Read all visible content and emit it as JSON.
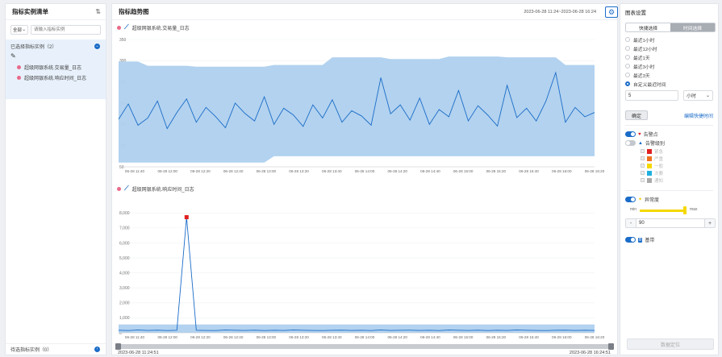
{
  "left_panel": {
    "title": "指标实例清单",
    "scope_select": "全部",
    "search_placeholder": "请输入指标实例",
    "selected_label": "已选择指标实例（2）",
    "selected_items": [
      "超级网银系统.交易量_日志",
      "超级网银系统.响应时间_日志"
    ],
    "pending_label": "待选指标实例（0）"
  },
  "main_panel": {
    "title": "指标趋势图",
    "time_range": "2023-06-28 11:24~2023-06-28 16:24",
    "slider_start": "2023-06-28 11:24:51",
    "slider_end": "2023-06-28 16:24:51"
  },
  "right_panel": {
    "title": "图表设置",
    "tab_quick": "快捷选择",
    "tab_time": "时间选择",
    "options": [
      "最近1小时",
      "最近12小时",
      "最近1天",
      "最近3小时",
      "最近3天",
      "自定义最近时间"
    ],
    "selected_option": 5,
    "custom_value": "5",
    "custom_unit": "小时",
    "confirm": "确定",
    "edit_shortcut": "编辑快捷时间",
    "alarm_point": "告警点",
    "alarm_level": "告警级别",
    "levels": [
      {
        "label": "紧急",
        "color": "#e02020"
      },
      {
        "label": "严重",
        "color": "#f07020"
      },
      {
        "label": "一般",
        "color": "#f5d800"
      },
      {
        "label": "次要",
        "color": "#1fb0e0"
      },
      {
        "label": "通知",
        "color": "#aaaaaa"
      }
    ],
    "anomaly": "异常度",
    "range_min": "min",
    "range_max": "max",
    "stepper_minus": "-",
    "stepper_value": "90",
    "stepper_plus": "+",
    "baseline": "基带",
    "locate_button": "数据定位"
  },
  "chart_data": [
    {
      "type": "line",
      "series_name": "超级网银系统.交易量_日志",
      "x_ticks": [
        "06-28 11:40",
        "06-28 12:00",
        "06-28 12:20",
        "06-28 12:40",
        "06-28 13:00",
        "06-28 13:20",
        "06-28 13:40",
        "06-28 14:00",
        "06-28 14:20",
        "06-28 14:40",
        "06-28 15:00",
        "06-28 15:20",
        "06-28 15:40",
        "06-28 16:00",
        "06-28 16:20"
      ],
      "y_ticks": [
        "50",
        "100",
        "150",
        "200",
        "250",
        "300",
        "350"
      ],
      "ylim": [
        50,
        350
      ],
      "line_color": "#1b6cc8",
      "band_color": "#aed0ee",
      "band_upper": [
        298,
        298,
        298,
        288,
        288,
        288,
        288,
        288,
        286,
        286,
        286,
        286,
        286,
        286,
        286,
        286,
        290,
        290,
        290,
        290,
        290,
        290,
        308,
        308,
        308,
        308,
        308,
        308,
        304,
        304,
        304,
        304,
        304,
        304,
        310,
        310,
        310,
        310,
        310,
        310,
        308,
        308,
        308,
        308,
        308,
        308,
        290,
        290,
        290,
        290
      ],
      "band_lower": [
        60,
        60,
        60,
        60,
        60,
        60,
        60,
        60,
        60,
        60,
        60,
        60,
        60,
        60,
        60,
        60,
        75,
        75,
        75,
        75,
        75,
        75,
        75,
        75,
        75,
        75,
        75,
        75,
        75,
        75,
        75,
        75,
        75,
        75,
        75,
        75,
        75,
        75,
        75,
        75,
        75,
        75,
        75,
        75,
        75,
        75,
        75,
        75,
        75,
        75
      ],
      "values": [
        162,
        198,
        148,
        165,
        205,
        140,
        178,
        210,
        155,
        190,
        168,
        142,
        200,
        176,
        158,
        215,
        150,
        188,
        172,
        145,
        196,
        165,
        208,
        155,
        182,
        170,
        148,
        260,
        175,
        196,
        160,
        212,
        150,
        185,
        168,
        230,
        158,
        194,
        172,
        146,
        242,
        166,
        188,
        158,
        205,
        272,
        155,
        190,
        168,
        178
      ]
    },
    {
      "type": "line",
      "series_name": "超级网银系统.响应时间_日志",
      "x_ticks": [
        "06-28 11:40",
        "06-28 12:00",
        "06-28 12:20",
        "06-28 12:40",
        "06-28 13:00",
        "06-28 13:20",
        "06-28 13:40",
        "06-28 14:00",
        "06-28 14:20",
        "06-28 14:40",
        "06-28 15:00",
        "06-28 15:20",
        "06-28 15:40",
        "06-28 16:00",
        "06-28 16:20"
      ],
      "y_ticks": [
        "0",
        "1,000",
        "2,000",
        "3,000",
        "4,000",
        "5,000",
        "6,000",
        "7,000",
        "8,000"
      ],
      "ylim": [
        0,
        8500
      ],
      "line_color": "#1b6cc8",
      "band_color": "#aed0ee",
      "band_upper": 560,
      "values": [
        170,
        150,
        190,
        160,
        180,
        150,
        170,
        7720,
        170,
        160,
        150,
        190,
        170,
        160,
        180,
        150,
        170,
        160,
        190,
        170,
        160,
        150,
        170,
        180,
        160,
        170,
        150,
        190,
        160,
        170,
        180,
        160,
        170,
        150,
        190,
        170,
        160,
        180,
        150,
        170,
        160,
        190,
        170,
        160,
        150,
        170,
        180,
        160,
        170,
        160
      ],
      "alarm_index": 7,
      "alarm_color": "#e02020"
    }
  ]
}
